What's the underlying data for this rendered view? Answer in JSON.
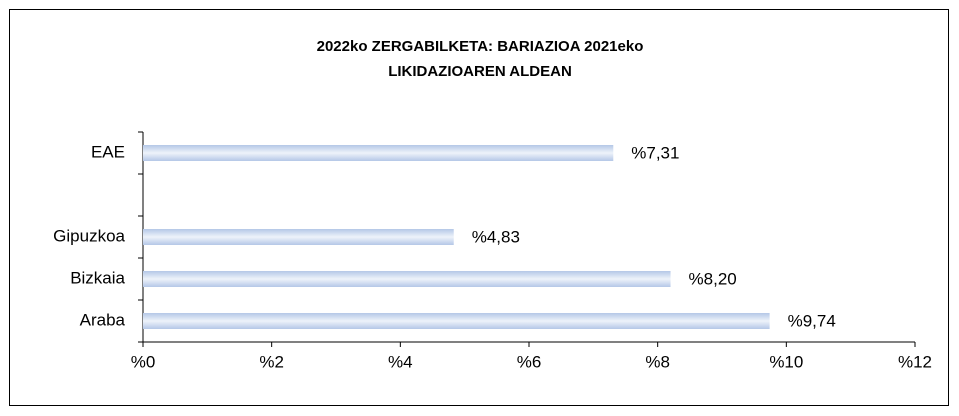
{
  "chart_data": {
    "type": "bar",
    "orientation": "horizontal",
    "title": [
      "2022ko ZERGABILKETA:  BARIAZIOA  2021eko",
      "LIKIDAZIOAREN  ALDEAN"
    ],
    "categories": [
      "EAE",
      null,
      "Gipuzkoa",
      "Bizkaia",
      "Araba"
    ],
    "values": [
      7.31,
      null,
      4.83,
      8.2,
      9.74
    ],
    "value_labels": [
      "%7,31",
      null,
      "%4,83",
      "%8,20",
      "%9,74"
    ],
    "color": "#b4c7e7",
    "xlim": [
      0,
      12
    ],
    "xticks": [
      {
        "value": 0,
        "label": "%0"
      },
      {
        "value": 2,
        "label": "%2"
      },
      {
        "value": 4,
        "label": "%4"
      },
      {
        "value": 6,
        "label": "%6"
      },
      {
        "value": 8,
        "label": "%8"
      },
      {
        "value": 10,
        "label": "%10"
      },
      {
        "value": 12,
        "label": "%12"
      }
    ]
  }
}
